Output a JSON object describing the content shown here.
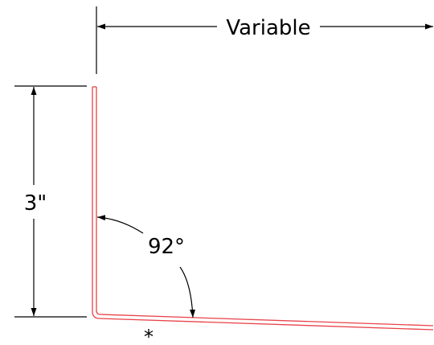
{
  "drawing": {
    "top_dimension_label": "Variable",
    "height_dimension_label": "3\"",
    "angle_label": "92°",
    "bottom_note": "*"
  },
  "colors": {
    "profile": "#e8434a",
    "dimension": "#000000",
    "background": "#ffffff"
  }
}
